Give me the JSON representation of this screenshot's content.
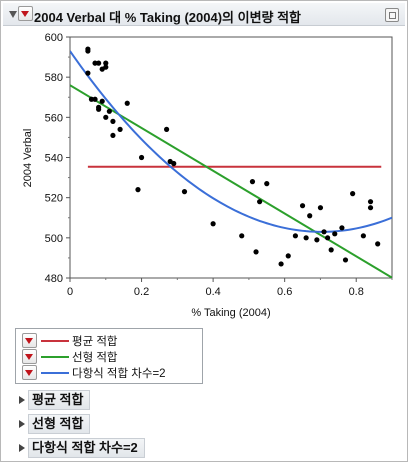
{
  "header": {
    "title": "2004 Verbal 대 % Taking (2004)의 이변량 적합"
  },
  "legend": {
    "items": [
      {
        "label": "평균 적합",
        "color": "#c8323c"
      },
      {
        "label": "선형 적합",
        "color": "#2ca02c"
      },
      {
        "label": "다항식 적합 차수=2",
        "color": "#3b6fd8"
      }
    ]
  },
  "outline": [
    {
      "label": "평균 적합"
    },
    {
      "label": "선형 적합"
    },
    {
      "label": "다항식 적합 차수=2"
    }
  ],
  "chart_data": {
    "type": "scatter",
    "title": "",
    "xlabel": "% Taking (2004)",
    "ylabel": "2004 Verbal",
    "xlim": [
      0,
      0.9
    ],
    "ylim": [
      480,
      600
    ],
    "xticks": [
      "0",
      "0.2",
      "0.4",
      "0.6",
      "0.8"
    ],
    "yticks": [
      "480",
      "500",
      "520",
      "540",
      "560",
      "580",
      "600"
    ],
    "grid": false,
    "points": [
      [
        0.05,
        594
      ],
      [
        0.05,
        593
      ],
      [
        0.05,
        582
      ],
      [
        0.06,
        569
      ],
      [
        0.07,
        587
      ],
      [
        0.07,
        569
      ],
      [
        0.08,
        565
      ],
      [
        0.08,
        564
      ],
      [
        0.08,
        587
      ],
      [
        0.09,
        584
      ],
      [
        0.09,
        568
      ],
      [
        0.1,
        585
      ],
      [
        0.1,
        587
      ],
      [
        0.1,
        560
      ],
      [
        0.11,
        563
      ],
      [
        0.12,
        551
      ],
      [
        0.12,
        558
      ],
      [
        0.14,
        554
      ],
      [
        0.16,
        567
      ],
      [
        0.19,
        524
      ],
      [
        0.2,
        540
      ],
      [
        0.27,
        554
      ],
      [
        0.28,
        538
      ],
      [
        0.29,
        537
      ],
      [
        0.32,
        523
      ],
      [
        0.4,
        507
      ],
      [
        0.48,
        501
      ],
      [
        0.51,
        528
      ],
      [
        0.52,
        493
      ],
      [
        0.53,
        518
      ],
      [
        0.55,
        527
      ],
      [
        0.59,
        487
      ],
      [
        0.61,
        491
      ],
      [
        0.63,
        501
      ],
      [
        0.65,
        516
      ],
      [
        0.66,
        500
      ],
      [
        0.67,
        511
      ],
      [
        0.69,
        499
      ],
      [
        0.7,
        515
      ],
      [
        0.71,
        503
      ],
      [
        0.72,
        500
      ],
      [
        0.73,
        494
      ],
      [
        0.74,
        502
      ],
      [
        0.76,
        505
      ],
      [
        0.77,
        489
      ],
      [
        0.79,
        522
      ],
      [
        0.82,
        501
      ],
      [
        0.84,
        518
      ],
      [
        0.84,
        515
      ],
      [
        0.86,
        497
      ]
    ],
    "series": [
      {
        "name": "평균 적합",
        "color": "#c8323c",
        "kind": "mean",
        "x": [
          0.05,
          0.87
        ],
        "y": [
          535.4,
          535.4
        ]
      },
      {
        "name": "선형 적합",
        "color": "#2ca02c",
        "kind": "linear",
        "intercept": 576.0,
        "slope": -106.5
      },
      {
        "name": "다항식 적합 차수=2",
        "color": "#3b6fd8",
        "kind": "quadratic",
        "a": 182.0,
        "b": -256.0,
        "c": 593.0
      }
    ]
  }
}
